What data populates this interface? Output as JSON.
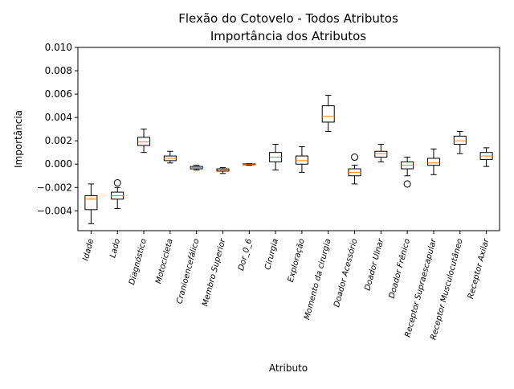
{
  "chart_data": {
    "type": "boxplot",
    "title_line1": "Flexão do Cotovelo - Todos Atributos",
    "title_line2": "Importância dos Atributos",
    "xlabel": "Atributo",
    "ylabel": "Importância",
    "ylim": [
      -0.0057,
      0.01
    ],
    "yticks": [
      -0.004,
      -0.002,
      0.0,
      0.002,
      0.004,
      0.006,
      0.008,
      0.01
    ],
    "ytick_labels": [
      "−0.004",
      "−0.002",
      "0.000",
      "0.002",
      "0.004",
      "0.006",
      "0.008",
      "0.010"
    ],
    "box_color": "#000000",
    "median_color": "#ff7f0e",
    "boxes": [
      {
        "label": "Idade",
        "whislo": -0.0051,
        "q1": -0.0039,
        "med": -0.003,
        "q3": -0.0027,
        "whishi": -0.0017,
        "fliers": []
      },
      {
        "label": "Lado",
        "whislo": -0.0038,
        "q1": -0.003,
        "med": -0.0027,
        "q3": -0.0024,
        "whishi": -0.002,
        "fliers": [
          -0.0016
        ]
      },
      {
        "label": "Diagnóstico",
        "whislo": 0.001,
        "q1": 0.0016,
        "med": 0.0019,
        "q3": 0.0023,
        "whishi": 0.003,
        "fliers": []
      },
      {
        "label": "Motocicleta",
        "whislo": 0.0001,
        "q1": 0.0003,
        "med": 0.0005,
        "q3": 0.0007,
        "whishi": 0.0011,
        "fliers": []
      },
      {
        "label": "Cranioencefálico",
        "whislo": -0.0005,
        "q1": -0.0004,
        "med": -0.0003,
        "q3": -0.0002,
        "whishi": -0.0001,
        "fliers": []
      },
      {
        "label": "Membro Superior",
        "whislo": -0.0008,
        "q1": -0.0006,
        "med": -0.0005,
        "q3": -0.0004,
        "whishi": -0.0003,
        "fliers": []
      },
      {
        "label": "Dor_0_6",
        "whislo": -0.0001,
        "q1": -5e-05,
        "med": 0.0,
        "q3": 3e-05,
        "whishi": 5e-05,
        "fliers": []
      },
      {
        "label": "Cirurgia",
        "whislo": -0.0005,
        "q1": 0.0002,
        "med": 0.0006,
        "q3": 0.001,
        "whishi": 0.0017,
        "fliers": []
      },
      {
        "label": "Exploração",
        "whislo": -0.0007,
        "q1": 0.0,
        "med": 0.0003,
        "q3": 0.0007,
        "whishi": 0.0015,
        "fliers": []
      },
      {
        "label": "Momento da cirurgia",
        "whislo": 0.0028,
        "q1": 0.0036,
        "med": 0.0041,
        "q3": 0.005,
        "whishi": 0.0059,
        "fliers": []
      },
      {
        "label": "Doador Acessório",
        "whislo": -0.0017,
        "q1": -0.001,
        "med": -0.0007,
        "q3": -0.0004,
        "whishi": -0.0001,
        "fliers": [
          0.0006
        ]
      },
      {
        "label": "Doador Ulnar",
        "whislo": 0.0002,
        "q1": 0.0006,
        "med": 0.0009,
        "q3": 0.0011,
        "whishi": 0.0017,
        "fliers": []
      },
      {
        "label": "Doador Frênico",
        "whislo": -0.001,
        "q1": -0.0004,
        "med": -0.0001,
        "q3": 0.0002,
        "whishi": 0.0006,
        "fliers": [
          -0.0017
        ]
      },
      {
        "label": "Receptor Supraescapular",
        "whislo": -0.0009,
        "q1": -0.0001,
        "med": 0.0001,
        "q3": 0.0005,
        "whishi": 0.0013,
        "fliers": []
      },
      {
        "label": "Receptor Musculocutâneo",
        "whislo": 0.0009,
        "q1": 0.0017,
        "med": 0.002,
        "q3": 0.0024,
        "whishi": 0.0028,
        "fliers": []
      },
      {
        "label": "Receptor Axilar",
        "whislo": -0.0002,
        "q1": 0.0004,
        "med": 0.0007,
        "q3": 0.001,
        "whishi": 0.0014,
        "fliers": []
      }
    ]
  }
}
